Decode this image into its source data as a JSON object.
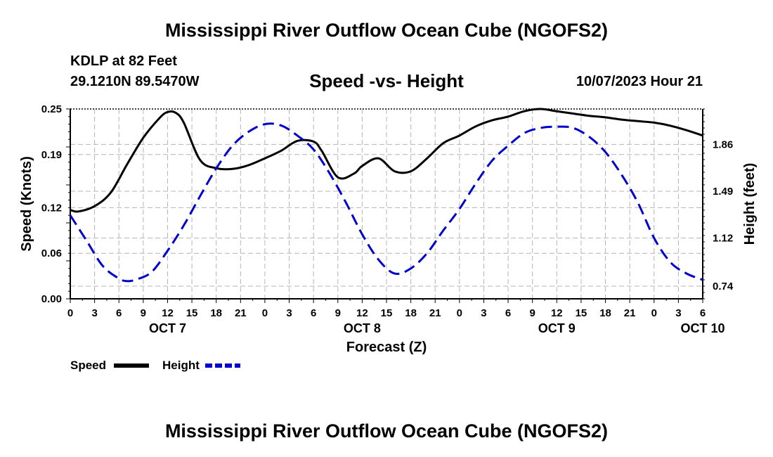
{
  "header": {
    "title": "Mississippi River Outflow Ocean Cube (NGOFS2)",
    "station": "KDLP at 82 Feet",
    "coordinates": "29.1210N  89.5470W",
    "subtitle": "Speed -vs- Height",
    "timestamp": "10/07/2023 Hour 21",
    "bottom_title": "Mississippi River Outflow Ocean Cube (NGOFS2)"
  },
  "colors": {
    "speed": "#000000",
    "height": "#0000cc",
    "grid": "#b4b4b4"
  },
  "chart_data": {
    "type": "line",
    "title": "Speed -vs- Height",
    "xlabel": "Forecast (Z)",
    "ylabel_left": "Speed (Knots)",
    "ylabel_right": "Height (feet)",
    "x_hours_range": [
      0,
      78
    ],
    "x_tick_labels": [
      "0",
      "3",
      "6",
      "9",
      "12",
      "15",
      "18",
      "21",
      "0",
      "3",
      "6",
      "9",
      "12",
      "15",
      "18",
      "21",
      "0",
      "3",
      "6",
      "9",
      "12",
      "15",
      "18",
      "21",
      "0",
      "3",
      "6"
    ],
    "day_labels": [
      {
        "label": "OCT 7",
        "hour": 12
      },
      {
        "label": "OCT 8",
        "hour": 36
      },
      {
        "label": "OCT 9",
        "hour": 60
      },
      {
        "label": "OCT 10",
        "hour": 78
      }
    ],
    "ylim_left": [
      0,
      0.25
    ],
    "yticks_left": [
      0,
      0.06,
      0.12,
      0.19,
      0.25
    ],
    "ytick_labels_left": [
      "0.00",
      "0.06",
      "0.12",
      "0.19",
      "0.25"
    ],
    "ylim_right": [
      0.64,
      2.14
    ],
    "yticks_right": [
      0.74,
      1.12,
      1.49,
      1.86
    ],
    "ytick_labels_right": [
      "0.74",
      "1.12",
      "1.49",
      "1.86"
    ],
    "series": [
      {
        "name": "Speed",
        "axis": "left",
        "style": "solid",
        "x": [
          0,
          1,
          3,
          5,
          7,
          9,
          11,
          12,
          13,
          14,
          16,
          18,
          20,
          22,
          24,
          26,
          28,
          30,
          31,
          33,
          35,
          36,
          38,
          40,
          42,
          44,
          46,
          48,
          50,
          52,
          54,
          56,
          58,
          60,
          62,
          64,
          66,
          68,
          70,
          72,
          74,
          76,
          78
        ],
        "values": [
          0.117,
          0.115,
          0.122,
          0.14,
          0.177,
          0.212,
          0.238,
          0.246,
          0.245,
          0.232,
          0.183,
          0.172,
          0.171,
          0.176,
          0.185,
          0.195,
          0.208,
          0.207,
          0.195,
          0.16,
          0.165,
          0.175,
          0.185,
          0.168,
          0.168,
          0.185,
          0.205,
          0.215,
          0.227,
          0.235,
          0.24,
          0.247,
          0.25,
          0.247,
          0.244,
          0.241,
          0.239,
          0.236,
          0.234,
          0.232,
          0.228,
          0.222,
          0.215
        ]
      },
      {
        "name": "Height",
        "axis": "right",
        "style": "dashed",
        "x": [
          0,
          2,
          4,
          6,
          7,
          8,
          10,
          12,
          14,
          16,
          18,
          20,
          22,
          24,
          26,
          28,
          30,
          32,
          34,
          36,
          38,
          40,
          42,
          44,
          46,
          48,
          50,
          52,
          54,
          56,
          58,
          60,
          62,
          64,
          66,
          68,
          70,
          72,
          74,
          76,
          78
        ],
        "values": [
          1.3,
          1.1,
          0.9,
          0.8,
          0.78,
          0.79,
          0.85,
          1.02,
          1.22,
          1.45,
          1.67,
          1.85,
          1.96,
          2.02,
          2.01,
          1.93,
          1.82,
          1.63,
          1.4,
          1.15,
          0.95,
          0.84,
          0.88,
          1.0,
          1.18,
          1.35,
          1.55,
          1.73,
          1.85,
          1.95,
          1.99,
          2.0,
          1.99,
          1.92,
          1.8,
          1.62,
          1.4,
          1.12,
          0.93,
          0.84,
          0.79
        ]
      }
    ],
    "legend": {
      "position": "bottom-left",
      "entries": [
        {
          "label": "Speed",
          "style": "solid"
        },
        {
          "label": "Height",
          "style": "dashed"
        }
      ]
    },
    "grid": true
  }
}
